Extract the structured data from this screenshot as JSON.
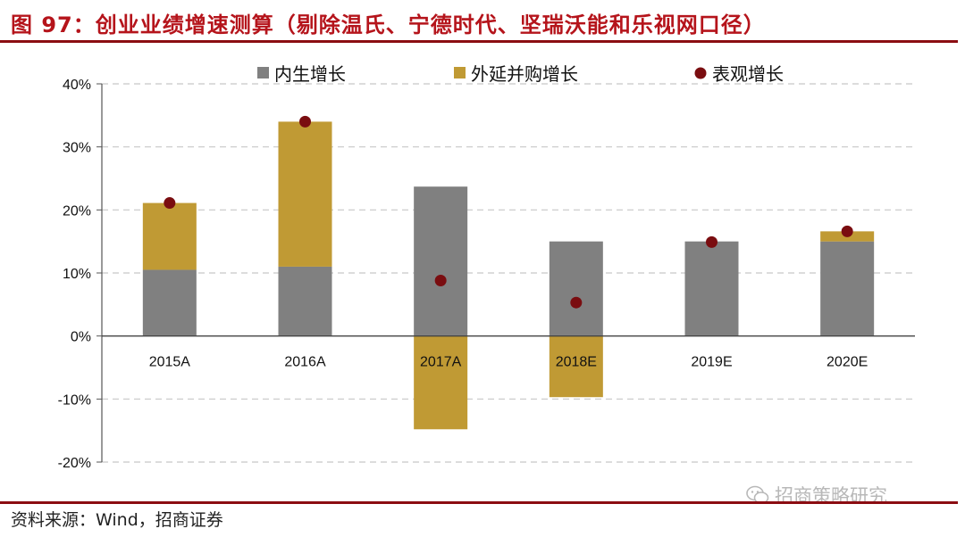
{
  "figure_title": "图 97：创业业绩增速测算（剔除温氏、宁德时代、坚瑞沃能和乐视网口径）",
  "source_text": "资料来源：Wind，招商证券",
  "watermark_text": "招商策略研究",
  "colors": {
    "organic": "#808080",
    "mna": "#c09a34",
    "reported": "#7a0d10",
    "accent": "#b5141b"
  },
  "chart_data": {
    "type": "bar",
    "stacked": true,
    "categories": [
      "2015A",
      "2016A",
      "2017A",
      "2018E",
      "2019E",
      "2020E"
    ],
    "series": [
      {
        "name": "内生增长",
        "kind": "bar",
        "values": [
          10.5,
          11.0,
          23.7,
          15.0,
          15.0,
          15.0
        ]
      },
      {
        "name": "外延并购增长",
        "kind": "bar",
        "values": [
          10.6,
          23.0,
          -14.8,
          -9.7,
          0,
          1.6
        ]
      },
      {
        "name": "表观增长",
        "kind": "scatter",
        "values": [
          21.1,
          34.0,
          8.8,
          5.3,
          14.9,
          16.6
        ]
      }
    ],
    "ylim": [
      -20,
      40
    ],
    "yticks": [
      -20,
      -10,
      0,
      10,
      20,
      30,
      40
    ],
    "ytick_labels": [
      "-20%",
      "-10%",
      "0%",
      "10%",
      "20%",
      "30%",
      "40%"
    ],
    "grid": true,
    "legend_position": "top"
  }
}
